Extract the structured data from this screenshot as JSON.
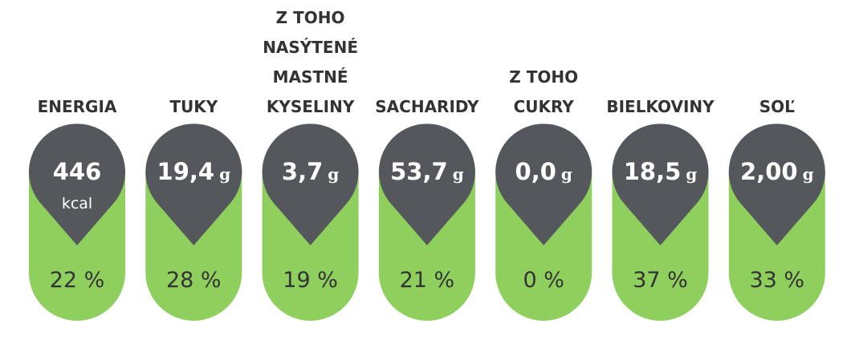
{
  "items": [
    {
      "label": [
        "ENERGIA"
      ],
      "amount": "446",
      "unit": "kcal",
      "percent": "22 %"
    },
    {
      "label": [
        "TUKY"
      ],
      "amount": "19,4",
      "unit": "g",
      "percent": "28 %"
    },
    {
      "label": [
        "Z TOHO",
        "NASÝTENÉ",
        "MASTNÉ",
        "KYSELINY"
      ],
      "amount": "3,7",
      "unit": "g",
      "percent": "19 %"
    },
    {
      "label": [
        "SACHARIDY"
      ],
      "amount": "53,7",
      "unit": "g",
      "percent": "21 %"
    },
    {
      "label": [
        "Z TOHO",
        "CUKRY"
      ],
      "amount": "0,0",
      "unit": "g",
      "percent": "0 %"
    },
    {
      "label": [
        "BIELKOVINY"
      ],
      "amount": "18,5",
      "unit": "g",
      "percent": "37 %"
    },
    {
      "label": [
        "SOĽ"
      ],
      "amount": "2,00",
      "unit": "g",
      "percent": "33 %"
    }
  ]
}
